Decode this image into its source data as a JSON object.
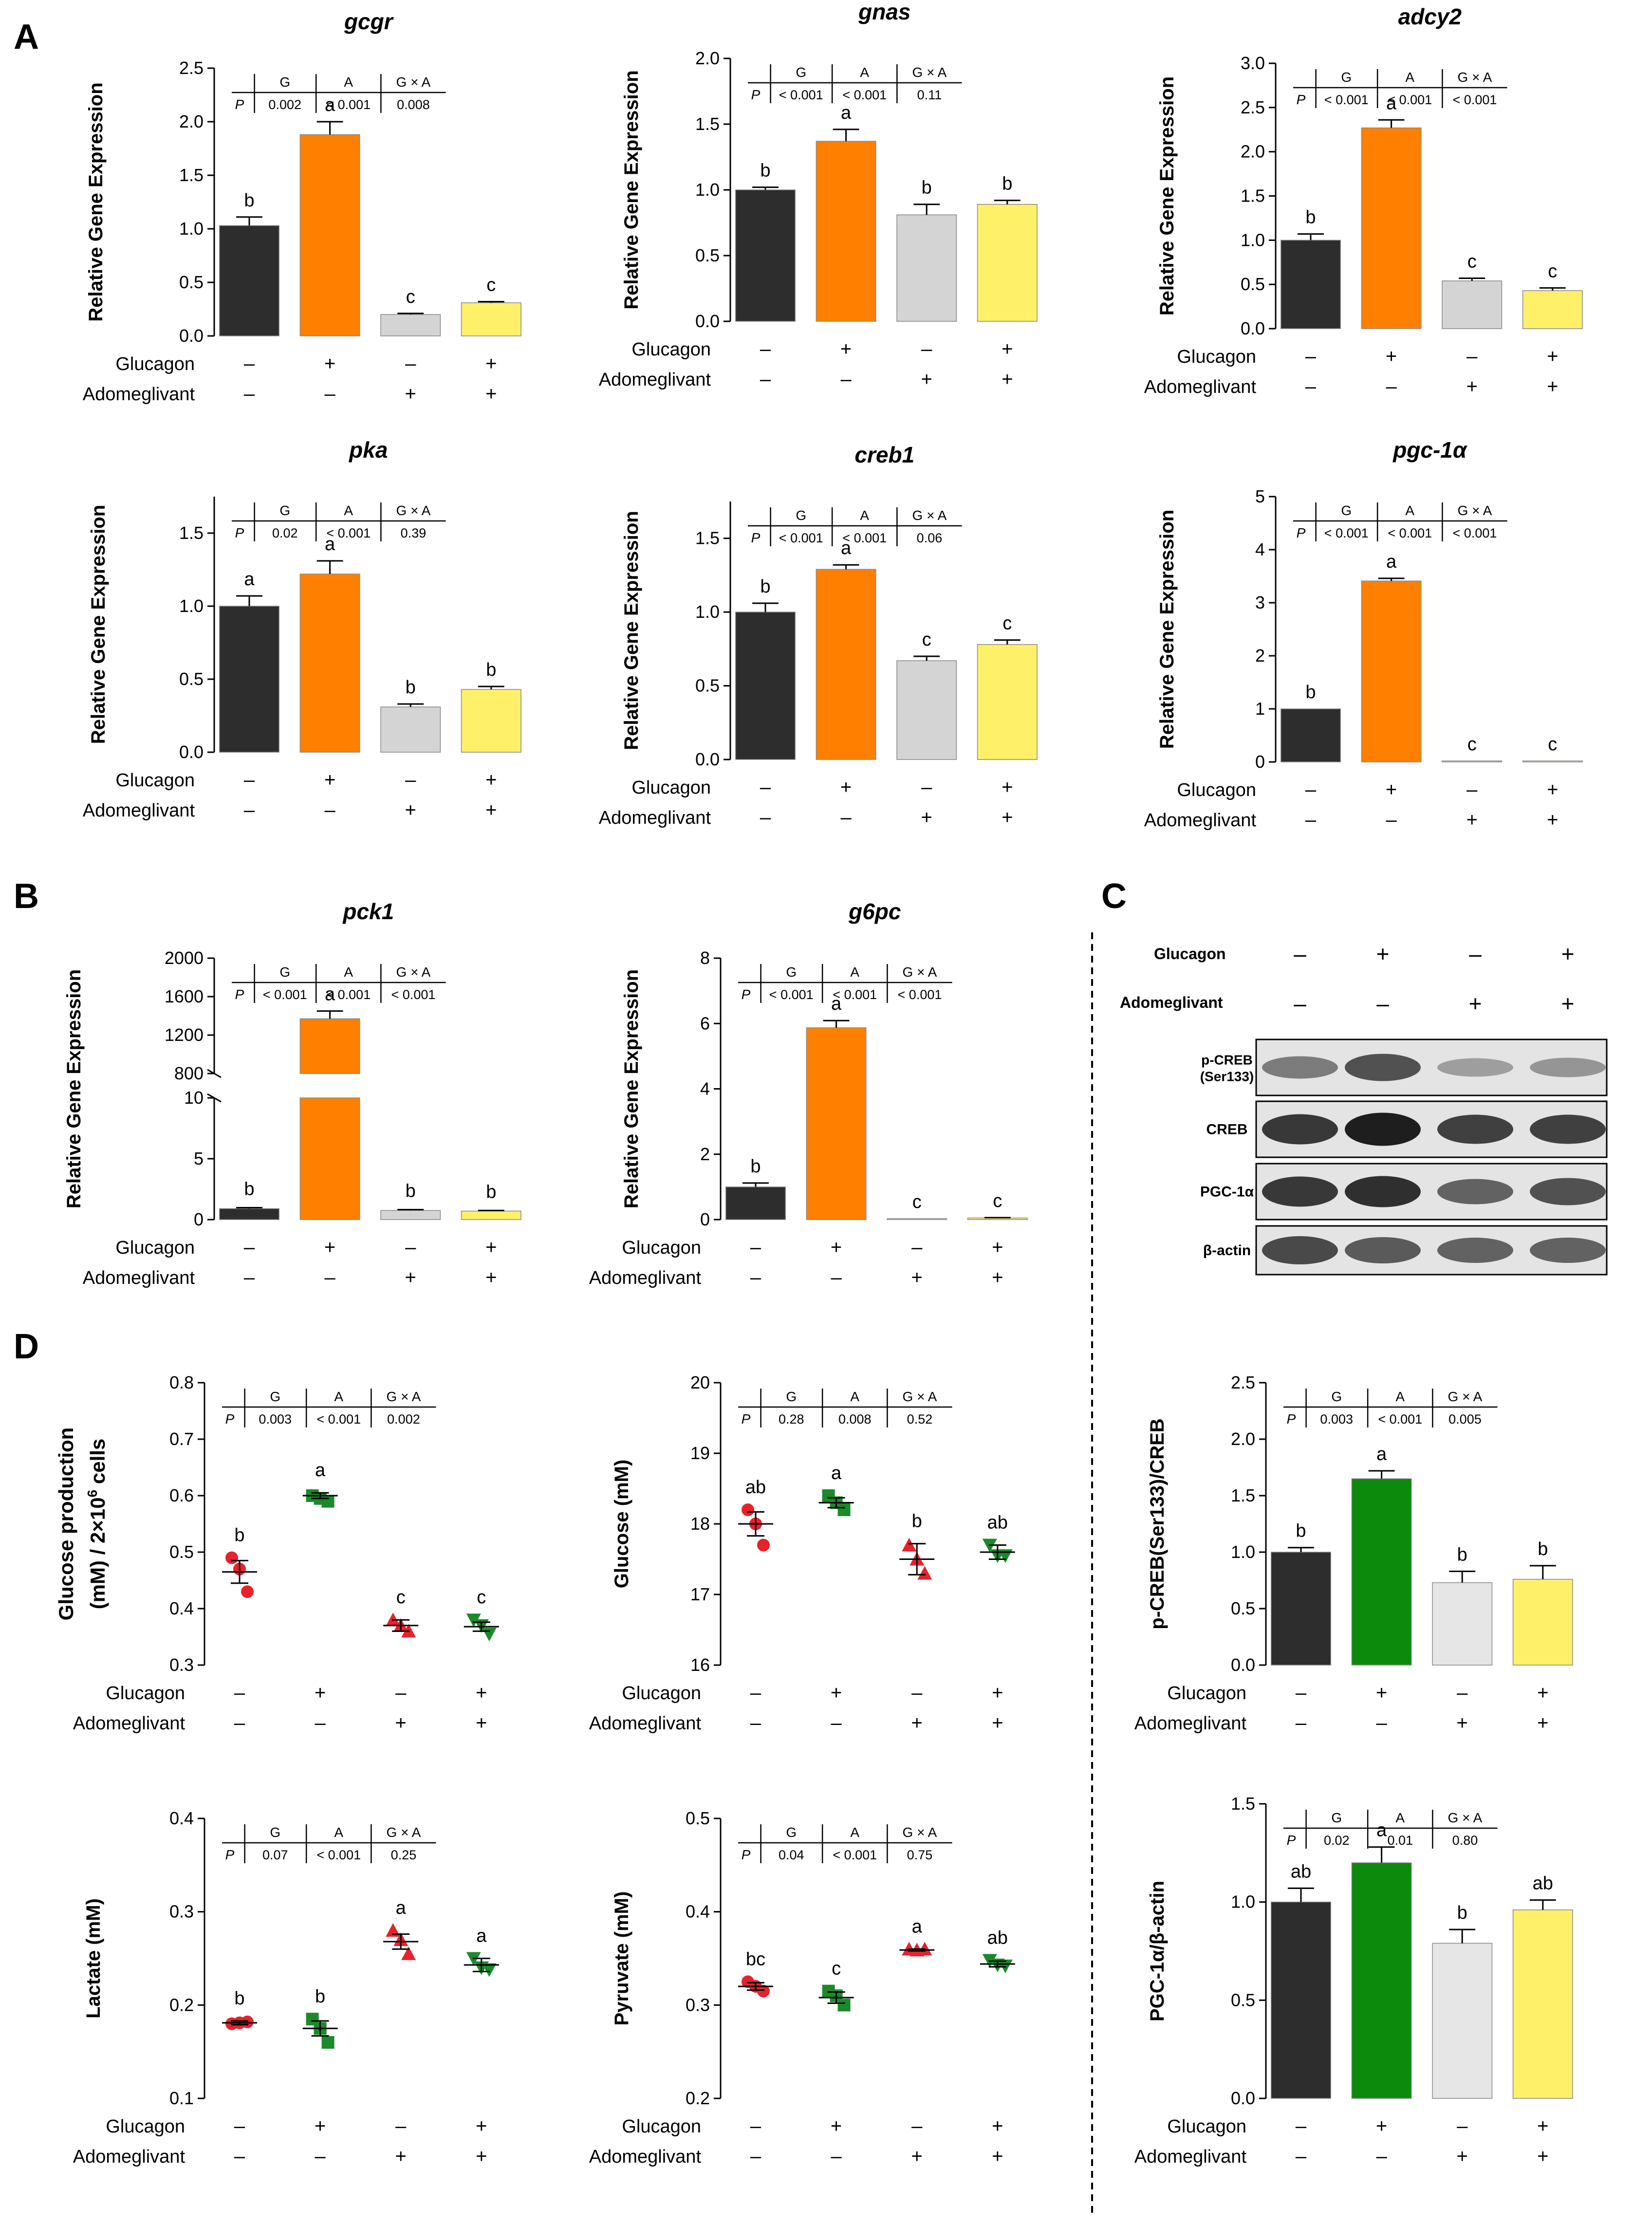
{
  "panel_letters": [
    "A",
    "B",
    "C",
    "D"
  ],
  "chart_data": [
    {
      "id": "gcgr",
      "type": "bar",
      "title": "gcgr",
      "title_italic": true,
      "ylabel": "Relative Gene Expression",
      "ylim": [
        0,
        2.5
      ],
      "yticks": [
        "0.0",
        "0.5",
        "1.0",
        "1.5",
        "2.0",
        "2.5"
      ],
      "values": [
        1.03,
        1.88,
        0.2,
        0.31
      ],
      "errors": [
        0.08,
        0.12,
        0.01,
        0.01
      ],
      "letters": [
        "b",
        "a",
        "c",
        "c"
      ],
      "colors": [
        "#2d2d2d",
        "#ff7f00",
        "#d4d4d4",
        "#fff069"
      ],
      "glucagon": [
        "–",
        "+",
        "–",
        "+"
      ],
      "adomeglivant": [
        "–",
        "–",
        "+",
        "+"
      ],
      "stats": {
        "header": [
          "G",
          "A",
          "G × A"
        ],
        "row_label": "P",
        "values": [
          "0.002",
          "< 0.001",
          "0.008"
        ]
      }
    },
    {
      "id": "gnas",
      "type": "bar",
      "title": "gnas",
      "title_italic": true,
      "ylabel": "Relative Gene Expression",
      "ylim": [
        0,
        2.0
      ],
      "yticks": [
        "0.0",
        "0.5",
        "1.0",
        "1.5",
        "2.0"
      ],
      "values": [
        1.0,
        1.37,
        0.81,
        0.89
      ],
      "errors": [
        0.02,
        0.09,
        0.08,
        0.03
      ],
      "letters": [
        "b",
        "a",
        "b",
        "b"
      ],
      "colors": [
        "#2d2d2d",
        "#ff7f00",
        "#d4d4d4",
        "#fff069"
      ],
      "glucagon": [
        "–",
        "+",
        "–",
        "+"
      ],
      "adomeglivant": [
        "–",
        "–",
        "+",
        "+"
      ],
      "stats": {
        "header": [
          "G",
          "A",
          "G × A"
        ],
        "row_label": "P",
        "values": [
          "< 0.001",
          "< 0.001",
          "0.11"
        ]
      }
    },
    {
      "id": "adcy2",
      "type": "bar",
      "title": "adcy2",
      "title_italic": true,
      "ylabel": "Relative Gene Expression",
      "ylim": [
        0,
        3.0
      ],
      "yticks": [
        "0.0",
        "0.5",
        "1.0",
        "1.5",
        "2.0",
        "2.5",
        "3.0"
      ],
      "values": [
        1.0,
        2.27,
        0.54,
        0.43
      ],
      "errors": [
        0.07,
        0.09,
        0.03,
        0.03
      ],
      "letters": [
        "b",
        "a",
        "c",
        "c"
      ],
      "colors": [
        "#2d2d2d",
        "#ff7f00",
        "#d4d4d4",
        "#fff069"
      ],
      "glucagon": [
        "–",
        "+",
        "–",
        "+"
      ],
      "adomeglivant": [
        "–",
        "–",
        "+",
        "+"
      ],
      "stats": {
        "header": [
          "G",
          "A",
          "G × A"
        ],
        "row_label": "P",
        "values": [
          "< 0.001",
          "< 0.001",
          "< 0.001"
        ]
      }
    },
    {
      "id": "pka",
      "type": "bar",
      "title": "pka",
      "title_italic": true,
      "ylabel": "Relative Gene Expression",
      "ylim": [
        0,
        1.75
      ],
      "yticks": [
        "0.0",
        "0.5",
        "1.0",
        "1.5"
      ],
      "values": [
        1.0,
        1.22,
        0.31,
        0.43
      ],
      "errors": [
        0.07,
        0.09,
        0.02,
        0.02
      ],
      "letters": [
        "a",
        "a",
        "b",
        "b"
      ],
      "colors": [
        "#2d2d2d",
        "#ff7f00",
        "#d4d4d4",
        "#fff069"
      ],
      "glucagon": [
        "–",
        "+",
        "–",
        "+"
      ],
      "adomeglivant": [
        "–",
        "–",
        "+",
        "+"
      ],
      "stats": {
        "header": [
          "G",
          "A",
          "G × A"
        ],
        "row_label": "P",
        "values": [
          "0.02",
          "< 0.001",
          "0.39"
        ]
      }
    },
    {
      "id": "creb1",
      "type": "bar",
      "title": "creb1",
      "title_italic": true,
      "ylabel": "Relative Gene Expression",
      "ylim": [
        0,
        1.75
      ],
      "yticks": [
        "0.0",
        "0.5",
        "1.0",
        "1.5"
      ],
      "values": [
        1.0,
        1.29,
        0.67,
        0.78
      ],
      "errors": [
        0.06,
        0.03,
        0.03,
        0.03
      ],
      "letters": [
        "b",
        "a",
        "c",
        "c"
      ],
      "colors": [
        "#2d2d2d",
        "#ff7f00",
        "#d4d4d4",
        "#fff069"
      ],
      "glucagon": [
        "–",
        "+",
        "–",
        "+"
      ],
      "adomeglivant": [
        "–",
        "–",
        "+",
        "+"
      ],
      "stats": {
        "header": [
          "G",
          "A",
          "G × A"
        ],
        "row_label": "P",
        "values": [
          "< 0.001",
          "< 0.001",
          "0.06"
        ]
      }
    },
    {
      "id": "pgc1a",
      "type": "bar",
      "title": "pgc-1α",
      "title_italic": true,
      "ylabel": "Relative Gene Expression",
      "ylim": [
        0,
        5
      ],
      "yticks": [
        "0",
        "1",
        "2",
        "3",
        "4",
        "5"
      ],
      "values": [
        1.0,
        3.41,
        0.02,
        0.02
      ],
      "errors": [
        0.0,
        0.05,
        0.0,
        0.0
      ],
      "letters": [
        "b",
        "a",
        "c",
        "c"
      ],
      "colors": [
        "#2d2d2d",
        "#ff7f00",
        "#d4d4d4",
        "#fff069"
      ],
      "glucagon": [
        "–",
        "+",
        "–",
        "+"
      ],
      "adomeglivant": [
        "–",
        "–",
        "+",
        "+"
      ],
      "stats": {
        "header": [
          "G",
          "A",
          "G × A"
        ],
        "row_label": "P",
        "values": [
          "< 0.001",
          "< 0.001",
          "< 0.001"
        ]
      }
    },
    {
      "id": "pck1",
      "type": "bar",
      "title": "pck1",
      "title_italic": true,
      "ylabel": "Relative Gene Expression",
      "broken_axis": true,
      "ylim_lower": [
        0,
        10
      ],
      "ylim_upper": [
        800,
        2000
      ],
      "yticks_lower": [
        "0",
        "5",
        "10"
      ],
      "yticks_upper": [
        "800",
        "1200",
        "1600",
        "2000"
      ],
      "values": [
        0.9,
        1370,
        0.75,
        0.7
      ],
      "errors": [
        0.08,
        80,
        0.07,
        0.05
      ],
      "letters": [
        "b",
        "a",
        "b",
        "b"
      ],
      "colors": [
        "#2d2d2d",
        "#ff7f00",
        "#d4d4d4",
        "#fff069"
      ],
      "glucagon": [
        "–",
        "+",
        "–",
        "+"
      ],
      "adomeglivant": [
        "–",
        "–",
        "+",
        "+"
      ],
      "stats": {
        "header": [
          "G",
          "A",
          "G × A"
        ],
        "row_label": "P",
        "values": [
          "< 0.001",
          "< 0.001",
          "< 0.001"
        ]
      }
    },
    {
      "id": "g6pc",
      "type": "bar",
      "title": "g6pc",
      "title_italic": true,
      "ylabel": "Relative Gene Expression",
      "ylim": [
        0,
        8
      ],
      "yticks": [
        "0",
        "2",
        "4",
        "6",
        "8"
      ],
      "values": [
        1.0,
        5.87,
        0.03,
        0.05
      ],
      "errors": [
        0.12,
        0.22,
        0.0,
        0.01
      ],
      "letters": [
        "b",
        "a",
        "c",
        "c"
      ],
      "colors": [
        "#2d2d2d",
        "#ff7f00",
        "#d4d4d4",
        "#fff069"
      ],
      "glucagon": [
        "–",
        "+",
        "–",
        "+"
      ],
      "adomeglivant": [
        "–",
        "–",
        "+",
        "+"
      ],
      "stats": {
        "header": [
          "G",
          "A",
          "G × A"
        ],
        "row_label": "P",
        "values": [
          "< 0.001",
          "< 0.001",
          "< 0.001"
        ]
      }
    },
    {
      "id": "pcreb",
      "type": "bar",
      "title": "",
      "ylabel": "p-CREB(Ser133)/CREB",
      "ylim": [
        0,
        2.5
      ],
      "yticks": [
        "0.0",
        "0.5",
        "1.0",
        "1.5",
        "2.0",
        "2.5"
      ],
      "values": [
        1.0,
        1.65,
        0.73,
        0.76
      ],
      "errors": [
        0.04,
        0.07,
        0.1,
        0.12
      ],
      "letters": [
        "b",
        "a",
        "b",
        "b"
      ],
      "colors": [
        "#2d2d2d",
        "#0b8a0b",
        "#e6e6e6",
        "#fff069"
      ],
      "glucagon": [
        "–",
        "+",
        "–",
        "+"
      ],
      "adomeglivant": [
        "–",
        "–",
        "+",
        "+"
      ],
      "stats": {
        "header": [
          "G",
          "A",
          "G × A"
        ],
        "row_label": "P",
        "values": [
          "0.003",
          "< 0.001",
          "0.005"
        ]
      }
    },
    {
      "id": "pgc_actin",
      "type": "bar",
      "title": "",
      "ylabel": "PGC-1α/β-actin",
      "ylim": [
        0,
        1.5
      ],
      "yticks": [
        "0.0",
        "0.5",
        "1.0",
        "1.5"
      ],
      "values": [
        1.0,
        1.2,
        0.79,
        0.96
      ],
      "errors": [
        0.07,
        0.08,
        0.07,
        0.05
      ],
      "letters": [
        "ab",
        "a",
        "b",
        "ab"
      ],
      "colors": [
        "#2d2d2d",
        "#0b8a0b",
        "#e6e6e6",
        "#fff069"
      ],
      "glucagon": [
        "–",
        "+",
        "–",
        "+"
      ],
      "adomeglivant": [
        "–",
        "–",
        "+",
        "+"
      ],
      "stats": {
        "header": [
          "G",
          "A",
          "G × A"
        ],
        "row_label": "P",
        "values": [
          "0.02",
          "0.01",
          "0.80"
        ]
      }
    },
    {
      "id": "glucose_prod",
      "type": "scatter",
      "title": "",
      "ylabel": "Glucose production (mM) / 2×10⁶ cells",
      "ylabel_line1": "Glucose production",
      "ylabel_line2": "(mM) / 2×10",
      "ylabel_sup": "6",
      "ylabel_tail": " cells",
      "ylim": [
        0.3,
        0.8
      ],
      "yticks": [
        "0.3",
        "0.4",
        "0.5",
        "0.6",
        "0.7",
        "0.8"
      ],
      "points": [
        [
          0.49,
          0.47,
          0.43
        ],
        [
          0.6,
          0.595,
          0.59
        ],
        [
          0.38,
          0.37,
          0.36
        ],
        [
          0.38,
          0.37,
          0.355
        ]
      ],
      "means": [
        0.465,
        0.6,
        0.37,
        0.368
      ],
      "sem": [
        0.02,
        0.005,
        0.01,
        0.008
      ],
      "letters": [
        "b",
        "a",
        "c",
        "c"
      ],
      "point_colors": [
        "#e8212b",
        "#1a8a2a",
        "#e8212b",
        "#1a8a2a"
      ],
      "markers": [
        "circle",
        "square",
        "triangle-up",
        "triangle-down"
      ],
      "glucagon": [
        "–",
        "+",
        "–",
        "+"
      ],
      "adomeglivant": [
        "–",
        "–",
        "+",
        "+"
      ],
      "stats": {
        "header": [
          "G",
          "A",
          "G × A"
        ],
        "row_label": "P",
        "values": [
          "0.003",
          "< 0.001",
          "0.002"
        ]
      }
    },
    {
      "id": "glucose",
      "type": "scatter",
      "title": "",
      "ylabel": "Glucose (mM)",
      "ylim": [
        16,
        20
      ],
      "yticks": [
        "16",
        "17",
        "18",
        "19",
        "20"
      ],
      "points": [
        [
          18.2,
          18.0,
          17.7
        ],
        [
          18.4,
          18.3,
          18.2
        ],
        [
          17.7,
          17.5,
          17.3
        ],
        [
          17.7,
          17.55,
          17.55
        ]
      ],
      "means": [
        18.0,
        18.3,
        17.5,
        17.6
      ],
      "sem": [
        0.17,
        0.07,
        0.22,
        0.1
      ],
      "letters": [
        "ab",
        "a",
        "b",
        "ab"
      ],
      "point_colors": [
        "#e8212b",
        "#1a8a2a",
        "#e8212b",
        "#1a8a2a"
      ],
      "markers": [
        "circle",
        "square",
        "triangle-up",
        "triangle-down"
      ],
      "glucagon": [
        "–",
        "+",
        "–",
        "+"
      ],
      "adomeglivant": [
        "–",
        "–",
        "+",
        "+"
      ],
      "stats": {
        "header": [
          "G",
          "A",
          "G × A"
        ],
        "row_label": "P",
        "values": [
          "0.28",
          "0.008",
          "0.52"
        ]
      }
    },
    {
      "id": "lactate",
      "type": "scatter",
      "title": "",
      "ylabel": "Lactate (mM)",
      "ylim": [
        0.1,
        0.4
      ],
      "yticks": [
        "0.1",
        "0.2",
        "0.3",
        "0.4"
      ],
      "points": [
        [
          0.18,
          0.181,
          0.182
        ],
        [
          0.185,
          0.175,
          0.16
        ],
        [
          0.28,
          0.27,
          0.255
        ],
        [
          0.25,
          0.24,
          0.238
        ]
      ],
      "means": [
        0.181,
        0.175,
        0.268,
        0.243
      ],
      "sem": [
        0.002,
        0.008,
        0.008,
        0.007
      ],
      "letters": [
        "b",
        "b",
        "a",
        "a"
      ],
      "point_colors": [
        "#e8212b",
        "#1a8a2a",
        "#e8212b",
        "#1a8a2a"
      ],
      "markers": [
        "circle",
        "square",
        "triangle-up",
        "triangle-down"
      ],
      "glucagon": [
        "–",
        "+",
        "–",
        "+"
      ],
      "adomeglivant": [
        "–",
        "–",
        "+",
        "+"
      ],
      "stats": {
        "header": [
          "G",
          "A",
          "G × A"
        ],
        "row_label": "P",
        "values": [
          "0.07",
          "< 0.001",
          "0.25"
        ]
      }
    },
    {
      "id": "pyruvate",
      "type": "scatter",
      "title": "",
      "ylabel": "Pyruvate (mM)",
      "ylim": [
        0.2,
        0.5
      ],
      "yticks": [
        "0.2",
        "0.3",
        "0.4",
        "0.5"
      ],
      "points": [
        [
          0.325,
          0.32,
          0.315
        ],
        [
          0.315,
          0.31,
          0.3
        ],
        [
          0.36,
          0.359,
          0.36
        ],
        [
          0.348,
          0.343,
          0.342
        ]
      ],
      "means": [
        0.32,
        0.308,
        0.359,
        0.344
      ],
      "sem": [
        0.004,
        0.006,
        0.001,
        0.003
      ],
      "letters": [
        "bc",
        "c",
        "a",
        "ab"
      ],
      "point_colors": [
        "#e8212b",
        "#1a8a2a",
        "#e8212b",
        "#1a8a2a"
      ],
      "markers": [
        "circle",
        "square",
        "triangle-up",
        "triangle-down"
      ],
      "glucagon": [
        "–",
        "+",
        "–",
        "+"
      ],
      "adomeglivant": [
        "–",
        "–",
        "+",
        "+"
      ],
      "stats": {
        "header": [
          "G",
          "A",
          "G × A"
        ],
        "row_label": "P",
        "values": [
          "0.04",
          "< 0.001",
          "0.75"
        ]
      }
    }
  ],
  "row_labels": {
    "glucagon": "Glucagon",
    "adomeglivant": "Adomeglivant"
  },
  "blot": {
    "treatment_labels": [
      "Glucagon",
      "Adomeglivant"
    ],
    "glucagon": [
      "–",
      "+",
      "–",
      "+"
    ],
    "adomeglivant": [
      "–",
      "–",
      "+",
      "+"
    ],
    "bands": [
      {
        "label_line1": "p-CREB",
        "label_line2": "(Ser133)",
        "intensity": [
          0.45,
          0.7,
          0.25,
          0.3
        ]
      },
      {
        "label_line1": "CREB",
        "label_line2": "",
        "intensity": [
          0.85,
          1.0,
          0.8,
          0.8
        ]
      },
      {
        "label_line1": "PGC-1α",
        "label_line2": "",
        "intensity": [
          0.85,
          0.9,
          0.6,
          0.7
        ]
      },
      {
        "label_line1": "β-actin",
        "label_line2": "",
        "intensity": [
          0.75,
          0.65,
          0.6,
          0.6
        ]
      }
    ]
  }
}
